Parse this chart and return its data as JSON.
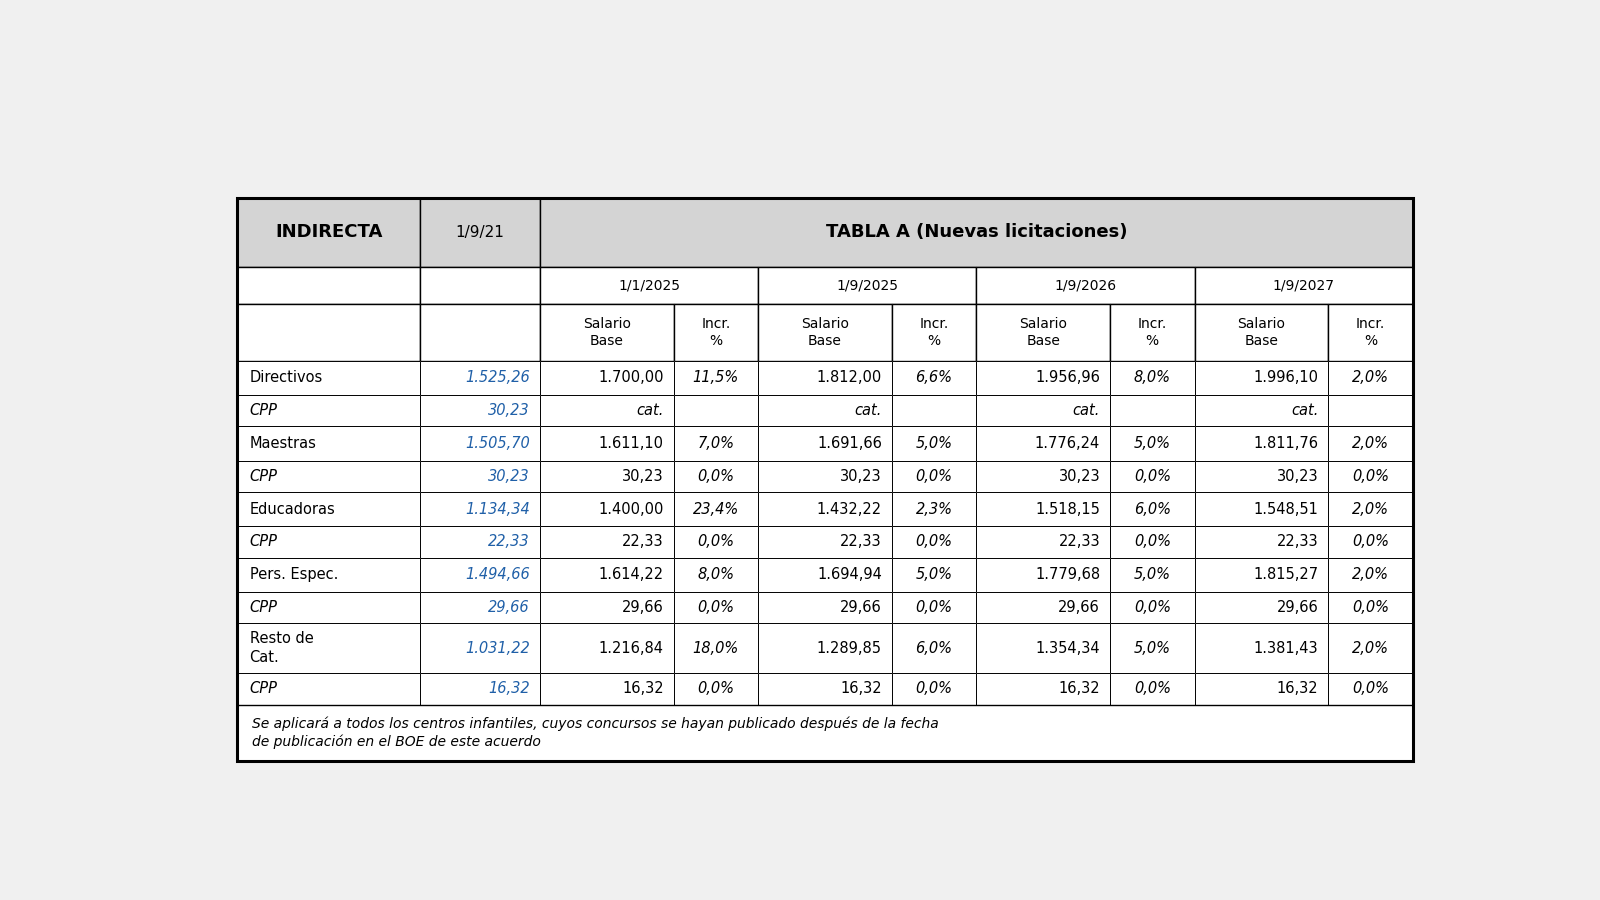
{
  "title_left": "INDIRECTA",
  "title_col2": "1/9/21",
  "title_main": "TABLA A (Nuevas licitaciones)",
  "date_cols": [
    "1/1/2025",
    "1/9/2025",
    "1/9/2026",
    "1/9/2027"
  ],
  "rows": [
    {
      "label": "Directivos",
      "cpp": false,
      "val_19_21": "1.525,26",
      "v1_sal": "1.700,00",
      "v1_inc": "11,5%",
      "v2_sal": "1.812,00",
      "v2_inc": "6,6%",
      "v3_sal": "1.956,96",
      "v3_inc": "8,0%",
      "v4_sal": "1.996,10",
      "v4_inc": "2,0%"
    },
    {
      "label": "CPP",
      "cpp": true,
      "val_19_21": "30,23",
      "v1_sal": "cat.",
      "v1_inc": "",
      "v2_sal": "cat.",
      "v2_inc": "",
      "v3_sal": "cat.",
      "v3_inc": "",
      "v4_sal": "cat.",
      "v4_inc": ""
    },
    {
      "label": "Maestras",
      "cpp": false,
      "val_19_21": "1.505,70",
      "v1_sal": "1.611,10",
      "v1_inc": "7,0%",
      "v2_sal": "1.691,66",
      "v2_inc": "5,0%",
      "v3_sal": "1.776,24",
      "v3_inc": "5,0%",
      "v4_sal": "1.811,76",
      "v4_inc": "2,0%"
    },
    {
      "label": "CPP",
      "cpp": true,
      "val_19_21": "30,23",
      "v1_sal": "30,23",
      "v1_inc": "0,0%",
      "v2_sal": "30,23",
      "v2_inc": "0,0%",
      "v3_sal": "30,23",
      "v3_inc": "0,0%",
      "v4_sal": "30,23",
      "v4_inc": "0,0%"
    },
    {
      "label": "Educadoras",
      "cpp": false,
      "val_19_21": "1.134,34",
      "v1_sal": "1.400,00",
      "v1_inc": "23,4%",
      "v2_sal": "1.432,22",
      "v2_inc": "2,3%",
      "v3_sal": "1.518,15",
      "v3_inc": "6,0%",
      "v4_sal": "1.548,51",
      "v4_inc": "2,0%"
    },
    {
      "label": "CPP",
      "cpp": true,
      "val_19_21": "22,33",
      "v1_sal": "22,33",
      "v1_inc": "0,0%",
      "v2_sal": "22,33",
      "v2_inc": "0,0%",
      "v3_sal": "22,33",
      "v3_inc": "0,0%",
      "v4_sal": "22,33",
      "v4_inc": "0,0%"
    },
    {
      "label": "Pers. Espec.",
      "cpp": false,
      "val_19_21": "1.494,66",
      "v1_sal": "1.614,22",
      "v1_inc": "8,0%",
      "v2_sal": "1.694,94",
      "v2_inc": "5,0%",
      "v3_sal": "1.779,68",
      "v3_inc": "5,0%",
      "v4_sal": "1.815,27",
      "v4_inc": "2,0%"
    },
    {
      "label": "CPP",
      "cpp": true,
      "val_19_21": "29,66",
      "v1_sal": "29,66",
      "v1_inc": "0,0%",
      "v2_sal": "29,66",
      "v2_inc": "0,0%",
      "v3_sal": "29,66",
      "v3_inc": "0,0%",
      "v4_sal": "29,66",
      "v4_inc": "0,0%"
    },
    {
      "label": "Resto de\nCat.",
      "cpp": false,
      "val_19_21": "1.031,22",
      "v1_sal": "1.216,84",
      "v1_inc": "18,0%",
      "v2_sal": "1.289,85",
      "v2_inc": "6,0%",
      "v3_sal": "1.354,34",
      "v3_inc": "5,0%",
      "v4_sal": "1.381,43",
      "v4_inc": "2,0%"
    },
    {
      "label": "CPP",
      "cpp": true,
      "val_19_21": "16,32",
      "v1_sal": "16,32",
      "v1_inc": "0,0%",
      "v2_sal": "16,32",
      "v2_inc": "0,0%",
      "v3_sal": "16,32",
      "v3_inc": "0,0%",
      "v4_sal": "16,32",
      "v4_inc": "0,0%"
    }
  ],
  "footnote": "Se aplicará a todos los centros infantiles, cuyos concursos se hayan publicado después de la fecha\nde publicación en el BOE de este acuerdo",
  "bg_white": "#ffffff",
  "bg_header": "#d4d4d4",
  "blue_color": "#2060a8",
  "black": "#000000",
  "fig_bg": "#f0f0f0"
}
